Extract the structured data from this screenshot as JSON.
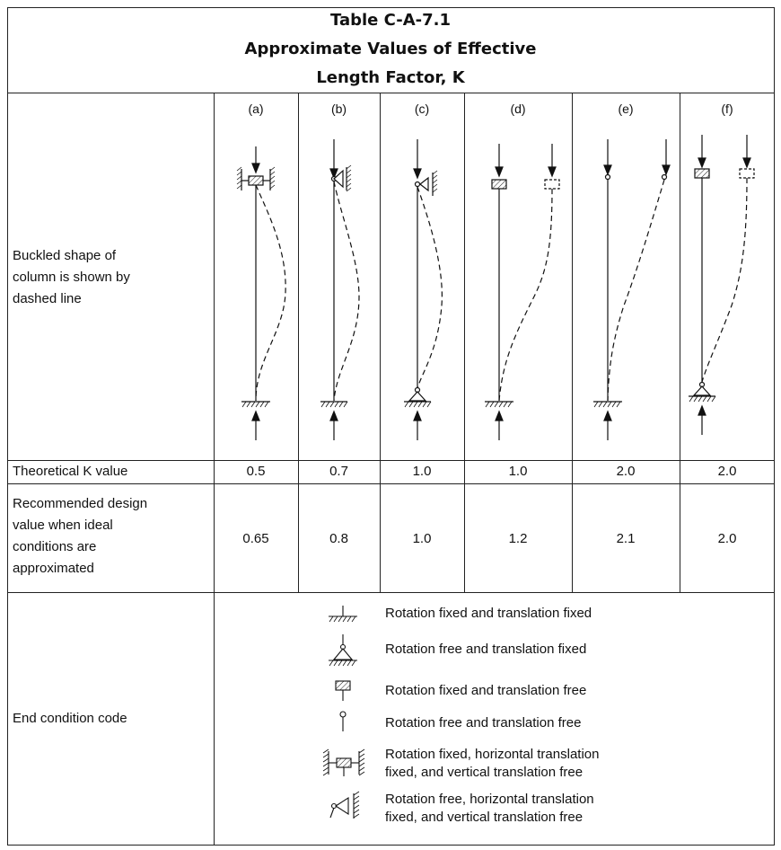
{
  "table": {
    "title_line1": "Table C-A-7.1",
    "title_line2": "Approximate Values of Effective",
    "title_line3": "Length Factor, K",
    "columns": [
      "(a)",
      "(b)",
      "(c)",
      "(d)",
      "(e)",
      "(f)"
    ],
    "row_buckled_label_1": "Buckled shape of",
    "row_buckled_label_2": "column is shown by",
    "row_buckled_label_3": "dashed line",
    "row_theoretical_label": "Theoretical K value",
    "theoretical_values": [
      "0.5",
      "0.7",
      "1.0",
      "1.0",
      "2.0",
      "2.0"
    ],
    "row_recommended_label_1": "Recommended design",
    "row_recommended_label_2": "value when ideal",
    "row_recommended_label_3": "conditions are",
    "row_recommended_label_4": "approximated",
    "recommended_values": [
      "0.65",
      "0.8",
      "1.0",
      "1.2",
      "2.1",
      "2.0"
    ],
    "row_endcode_label": "End condition code",
    "legend": [
      {
        "icon": "fixed-fixed-icon",
        "line1": "Rotation fixed and translation fixed",
        "line2": ""
      },
      {
        "icon": "pin-fixed-icon",
        "line1": "Rotation free and translation fixed",
        "line2": ""
      },
      {
        "icon": "fixed-free-icon",
        "line1": "Rotation fixed and translation free",
        "line2": ""
      },
      {
        "icon": "free-free-icon",
        "line1": "Rotation free and translation free",
        "line2": ""
      },
      {
        "icon": "guided-fixed-icon",
        "line1": "Rotation fixed, horizontal translation",
        "line2": "fixed, and vertical translation free"
      },
      {
        "icon": "guided-pin-icon",
        "line1": "Rotation free, horizontal translation",
        "line2": "fixed, and vertical translation free"
      }
    ]
  }
}
